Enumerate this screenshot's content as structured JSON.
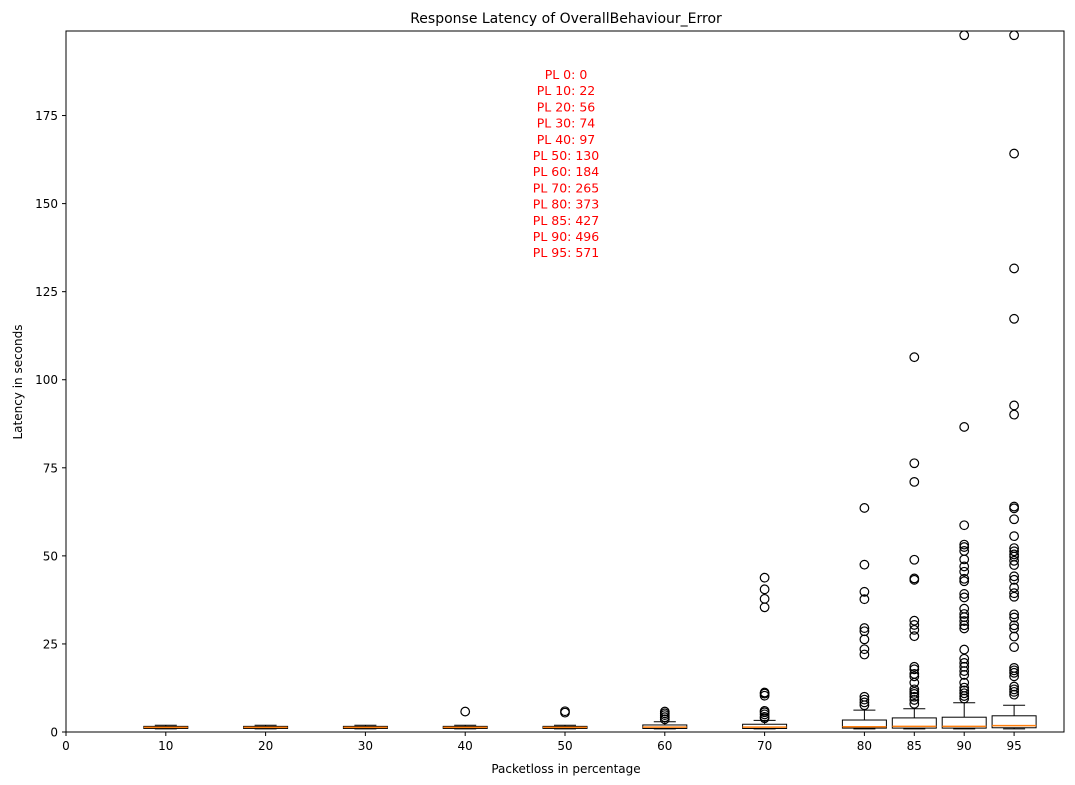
{
  "chart_data": {
    "type": "box",
    "title": "Response Latency of OverallBehaviour_Error",
    "xlabel": "Packetloss in percentage",
    "ylabel": "Latency in seconds",
    "xlim": [
      0,
      100
    ],
    "ylim": [
      0,
      199
    ],
    "x_ticks": [
      0,
      10,
      20,
      30,
      40,
      50,
      60,
      70,
      80,
      85,
      90,
      95
    ],
    "y_ticks": [
      0,
      25,
      50,
      75,
      100,
      125,
      150,
      175
    ],
    "annotation_color": "#ff0000",
    "median_color": "#ff7f0e",
    "annotation_lines": [
      "PL 0: 0",
      "PL 10: 22",
      "PL 20: 56",
      "PL 30: 74",
      "PL 40: 97",
      "PL 50: 130",
      "PL 60: 184",
      "PL 70: 265",
      "PL 80: 373",
      "PL 85: 427",
      "PL 90: 496",
      "PL 95: 571"
    ],
    "boxes": [
      {
        "x": 10,
        "whislo": 0.9,
        "q1": 1.0,
        "med": 1.3,
        "q3": 1.6,
        "whishi": 1.9,
        "fliers": []
      },
      {
        "x": 20,
        "whislo": 0.9,
        "q1": 1.0,
        "med": 1.3,
        "q3": 1.6,
        "whishi": 1.9,
        "fliers": []
      },
      {
        "x": 30,
        "whislo": 0.9,
        "q1": 1.0,
        "med": 1.3,
        "q3": 1.6,
        "whishi": 1.9,
        "fliers": []
      },
      {
        "x": 40,
        "whislo": 0.9,
        "q1": 1.0,
        "med": 1.3,
        "q3": 1.6,
        "whishi": 1.9,
        "fliers": [
          5.8
        ]
      },
      {
        "x": 50,
        "whislo": 0.9,
        "q1": 1.0,
        "med": 1.3,
        "q3": 1.6,
        "whishi": 1.9,
        "fliers": [
          5.5,
          5.9
        ]
      },
      {
        "x": 60,
        "whislo": 0.9,
        "q1": 1.0,
        "med": 1.4,
        "q3": 2.0,
        "whishi": 2.9,
        "fliers": [
          3.6,
          4.2,
          4.8,
          5.3,
          5.8
        ]
      },
      {
        "x": 70,
        "whislo": 0.9,
        "q1": 1.0,
        "med": 1.4,
        "q3": 2.2,
        "whishi": 3.3,
        "fliers": [
          3.9,
          4.3,
          5.0,
          5.6,
          6.0,
          10.3,
          10.9,
          11.2,
          35.4,
          37.8,
          40.5,
          43.8
        ]
      },
      {
        "x": 80,
        "whislo": 0.9,
        "q1": 1.1,
        "med": 1.5,
        "q3": 3.4,
        "whishi": 6.2,
        "fliers": [
          7.6,
          8.4,
          9.2,
          10.0,
          22.0,
          23.5,
          26.3,
          28.6,
          29.5,
          37.7,
          39.8,
          47.5,
          63.6
        ]
      },
      {
        "x": 85,
        "whislo": 0.9,
        "q1": 1.1,
        "med": 1.6,
        "q3": 4.0,
        "whishi": 6.6,
        "fliers": [
          8.0,
          9.1,
          10.0,
          10.8,
          11.4,
          12.1,
          14.0,
          15.8,
          16.5,
          17.8,
          18.5,
          27.2,
          29.0,
          30.4,
          31.6,
          43.2,
          43.6,
          48.9,
          71.0,
          76.3,
          106.4
        ]
      },
      {
        "x": 90,
        "whislo": 0.9,
        "q1": 1.1,
        "med": 1.6,
        "q3": 4.2,
        "whishi": 8.3,
        "fliers": [
          9.5,
          10.2,
          11.0,
          11.8,
          12.6,
          14.0,
          16.2,
          17.3,
          18.5,
          19.6,
          20.8,
          23.4,
          29.4,
          30.3,
          31.5,
          32.6,
          33.5,
          35.0,
          38.2,
          39.2,
          42.8,
          43.5,
          45.5,
          47.0,
          49.0,
          51.4,
          52.5,
          53.2,
          58.7,
          86.6,
          197.8
        ]
      },
      {
        "x": 95,
        "whislo": 0.9,
        "q1": 1.2,
        "med": 1.8,
        "q3": 4.6,
        "whishi": 7.6,
        "fliers": [
          10.6,
          11.4,
          12.1,
          12.9,
          15.8,
          16.8,
          17.5,
          18.2,
          24.1,
          27.1,
          29.4,
          30.3,
          32.5,
          33.4,
          38.4,
          39.4,
          41.0,
          43.2,
          44.2,
          47.4,
          48.6,
          49.8,
          50.4,
          51.3,
          52.2,
          55.6,
          60.4,
          63.5,
          64.0,
          90.1,
          92.7,
          117.3,
          131.6,
          164.2,
          197.8
        ]
      }
    ]
  }
}
